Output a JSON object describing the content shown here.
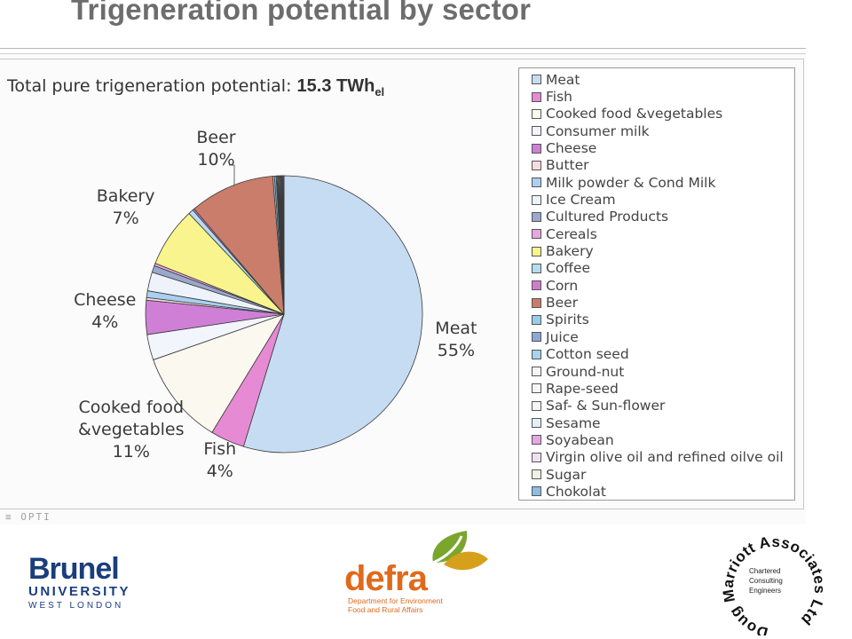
{
  "header": {
    "title": "Trigeneration potential by sector",
    "potential_prefix": "Total pure trigeneration potential: ",
    "potential_value": "15.3 TWh",
    "potential_sub": "el"
  },
  "chart_data": {
    "type": "pie",
    "title": "Trigeneration potential by sector",
    "legend_position": "right",
    "slices": [
      {
        "name": "Meat",
        "value": 55,
        "color": "#c6dcf2",
        "label": "Meat",
        "pct": "55%"
      },
      {
        "name": "Fish",
        "value": 4,
        "color": "#e68ad4",
        "label": "Fish",
        "pct": "4%"
      },
      {
        "name": "Cooked food &vegetables",
        "value": 11,
        "color": "#fbf9ef",
        "label": "Cooked food\n&vegetables",
        "pct": "11%"
      },
      {
        "name": "Consumer milk",
        "value": 3,
        "color": "#f2f5fc"
      },
      {
        "name": "Cheese",
        "value": 4,
        "color": "#cf7fd6",
        "label": "Cheese",
        "pct": "4%"
      },
      {
        "name": "Butter",
        "value": 0.3,
        "color": "#f6dcdc"
      },
      {
        "name": "Milk powder & Cond Milk",
        "value": 0.8,
        "color": "#a9cff2"
      },
      {
        "name": "Ice Cream",
        "value": 2.2,
        "color": "#eef3fb"
      },
      {
        "name": "Cultured Products",
        "value": 0.8,
        "color": "#9aa8cc"
      },
      {
        "name": "Cereals",
        "value": 0.3,
        "color": "#e9a6e0"
      },
      {
        "name": "Bakery",
        "value": 7,
        "color": "#f9f48d",
        "label": "Bakery",
        "pct": "7%"
      },
      {
        "name": "Coffee",
        "value": 0.6,
        "color": "#b7dcf0"
      },
      {
        "name": "Corn",
        "value": 0.2,
        "color": "#d07ccc"
      },
      {
        "name": "Beer",
        "value": 10,
        "color": "#c97d6a",
        "label": "Beer",
        "pct": "10%"
      },
      {
        "name": "Spirits",
        "value": 0.2,
        "color": "#96cde8"
      },
      {
        "name": "Juice",
        "value": 0.2,
        "color": "#8da8d8"
      },
      {
        "name": "Cotton seed",
        "value": 0.1,
        "color": "#a8d2ee"
      },
      {
        "name": "Ground-nut",
        "value": 0.1,
        "color": "#f5f5f5"
      },
      {
        "name": "Rape-seed",
        "value": 0.1,
        "color": "#f5f5f5"
      },
      {
        "name": "Saf- & Sun-flower",
        "value": 0.1,
        "color": "#f5f5f5"
      },
      {
        "name": "Sesame",
        "value": 0.1,
        "color": "#e4eef8"
      },
      {
        "name": "Soyabean",
        "value": 0.1,
        "color": "#e7a6e2"
      },
      {
        "name": "Virgin olive oil and refined oilve oil",
        "value": 0.1,
        "color": "#f0dff4"
      },
      {
        "name": "Sugar",
        "value": 0.1,
        "color": "#f4f0e6"
      },
      {
        "name": "Chokolat",
        "value": 0.1,
        "color": "#8fbce6"
      }
    ]
  },
  "footer": {
    "scan_mark": "≡ OPTI",
    "brunel_name": "Brunel",
    "brunel_university": "UNIVERSITY",
    "brunel_location": "WEST LONDON",
    "defra_word": "defra",
    "defra_line1": "Department for Environment",
    "defra_line2": "Food and Rural Affairs",
    "dma_ring": "Doug Marriott Associates Ltd",
    "dma_line1": "Chartered",
    "dma_line2": "Consulting",
    "dma_line3": "Engineers"
  },
  "colors": {
    "title_gray": "#6d6d6d",
    "brunel_blue": "#1a3d7c",
    "defra_orange": "#e06a1b",
    "defra_green": "#7aa62e"
  }
}
